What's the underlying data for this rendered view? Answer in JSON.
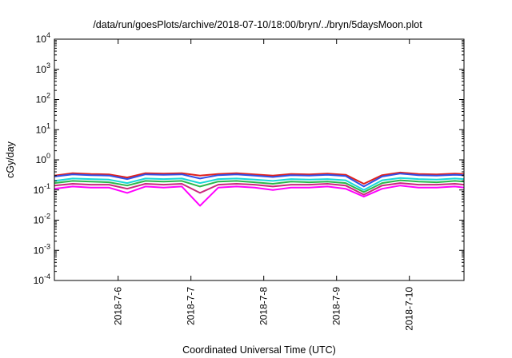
{
  "chart_data": {
    "type": "line",
    "title": "/data/run/goesPlots/archive/2018-07-10/18:00/bryn/../bryn/5daysMoon.plot",
    "xlabel": "Coordinated Universal Time (UTC)",
    "ylabel": "cGy/day",
    "yscale": "log",
    "ylim": [
      0.0001,
      10000
    ],
    "xlim": [
      "2018-07-05T03:00",
      "2018-07-10T18:00"
    ],
    "grid": false,
    "legend": "none",
    "y_ticks": [
      {
        "base": "10",
        "exp": "-4",
        "value": 0.0001
      },
      {
        "base": "10",
        "exp": "-3",
        "value": 0.001
      },
      {
        "base": "10",
        "exp": "-2",
        "value": 0.01
      },
      {
        "base": "10",
        "exp": "-1",
        "value": 0.1
      },
      {
        "base": "10",
        "exp": "0",
        "value": 1
      },
      {
        "base": "10",
        "exp": "1",
        "value": 10
      },
      {
        "base": "10",
        "exp": "2",
        "value": 100
      },
      {
        "base": "10",
        "exp": "3",
        "value": 1000
      },
      {
        "base": "10",
        "exp": "4",
        "value": 10000
      }
    ],
    "x_ticks": [
      {
        "label": "2018-7-6",
        "value": "2018-07-06T00:00"
      },
      {
        "label": "2018-7-7",
        "value": "2018-07-07T00:00"
      },
      {
        "label": "2018-7-8",
        "value": "2018-07-08T00:00"
      },
      {
        "label": "2018-7-9",
        "value": "2018-07-09T00:00"
      },
      {
        "label": "2018-7-10",
        "value": "2018-07-10T00:00"
      }
    ],
    "x": [
      "2018-07-05T03:00",
      "2018-07-05T09:00",
      "2018-07-05T15:00",
      "2018-07-05T21:00",
      "2018-07-06T03:00",
      "2018-07-06T09:00",
      "2018-07-06T15:00",
      "2018-07-06T21:00",
      "2018-07-07T03:00",
      "2018-07-07T09:00",
      "2018-07-07T15:00",
      "2018-07-07T21:00",
      "2018-07-08T03:00",
      "2018-07-08T09:00",
      "2018-07-08T15:00",
      "2018-07-08T21:00",
      "2018-07-09T03:00",
      "2018-07-09T09:00",
      "2018-07-09T15:00",
      "2018-07-09T21:00",
      "2018-07-10T03:00",
      "2018-07-10T09:00",
      "2018-07-10T15:00",
      "2018-07-10T18:00"
    ],
    "series": [
      {
        "color": "#e0201c",
        "values": [
          0.3,
          0.36,
          0.34,
          0.33,
          0.26,
          0.36,
          0.35,
          0.36,
          0.3,
          0.34,
          0.36,
          0.33,
          0.3,
          0.34,
          0.33,
          0.35,
          0.32,
          0.16,
          0.31,
          0.38,
          0.34,
          0.33,
          0.35,
          0.34
        ]
      },
      {
        "color": "#3050e8",
        "values": [
          0.28,
          0.33,
          0.31,
          0.3,
          0.23,
          0.33,
          0.32,
          0.33,
          0.24,
          0.31,
          0.33,
          0.3,
          0.27,
          0.31,
          0.3,
          0.32,
          0.29,
          0.13,
          0.28,
          0.35,
          0.31,
          0.3,
          0.32,
          0.31
        ]
      },
      {
        "color": "#19d8d8",
        "values": [
          0.2,
          0.24,
          0.23,
          0.22,
          0.17,
          0.24,
          0.23,
          0.24,
          0.17,
          0.23,
          0.24,
          0.22,
          0.2,
          0.23,
          0.22,
          0.23,
          0.21,
          0.1,
          0.21,
          0.25,
          0.23,
          0.22,
          0.24,
          0.23
        ]
      },
      {
        "color": "#2ab84a",
        "values": [
          0.17,
          0.2,
          0.19,
          0.18,
          0.14,
          0.2,
          0.19,
          0.2,
          0.13,
          0.19,
          0.2,
          0.18,
          0.16,
          0.19,
          0.18,
          0.19,
          0.17,
          0.085,
          0.17,
          0.21,
          0.19,
          0.18,
          0.2,
          0.19
        ]
      },
      {
        "color": "#c8287c",
        "values": [
          0.14,
          0.16,
          0.15,
          0.15,
          0.11,
          0.16,
          0.15,
          0.16,
          0.08,
          0.15,
          0.16,
          0.15,
          0.13,
          0.15,
          0.15,
          0.16,
          0.14,
          0.07,
          0.14,
          0.17,
          0.15,
          0.15,
          0.16,
          0.15
        ]
      },
      {
        "color": "#ff00ff",
        "values": [
          0.11,
          0.13,
          0.12,
          0.12,
          0.08,
          0.13,
          0.12,
          0.13,
          0.03,
          0.12,
          0.13,
          0.12,
          0.1,
          0.12,
          0.12,
          0.13,
          0.11,
          0.06,
          0.11,
          0.14,
          0.12,
          0.12,
          0.13,
          0.12
        ]
      }
    ]
  }
}
